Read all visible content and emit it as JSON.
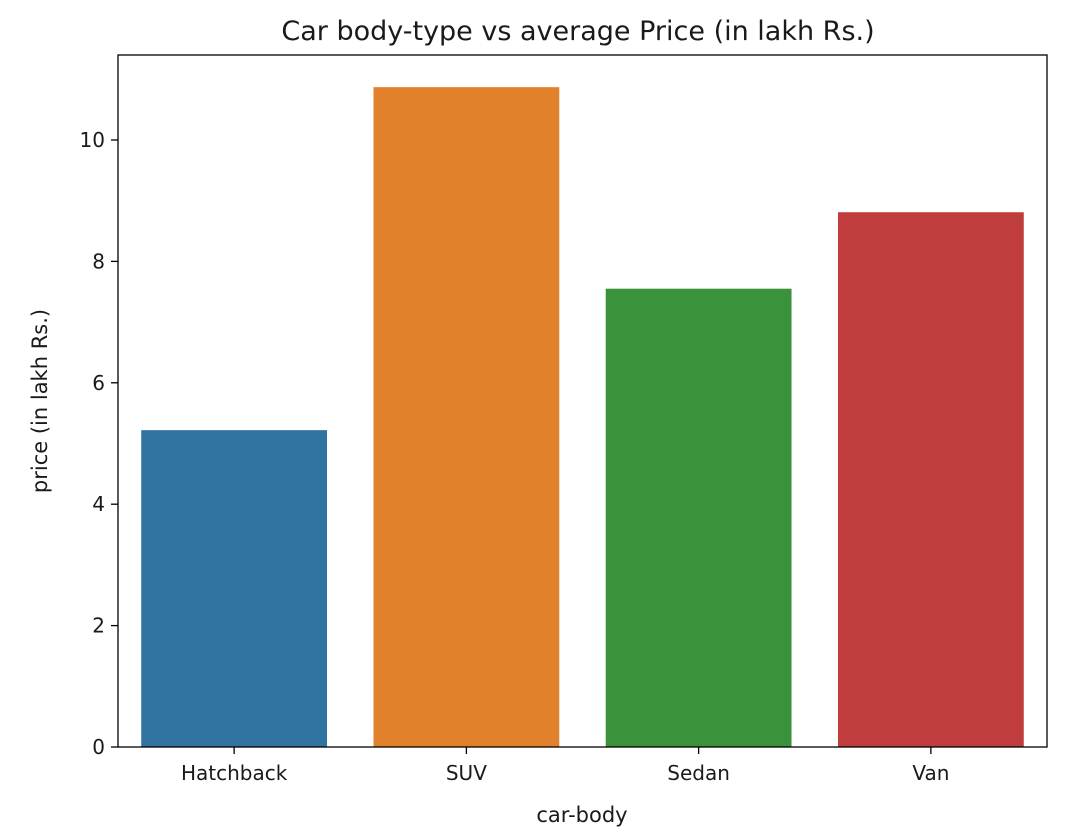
{
  "chart_data": {
    "type": "bar",
    "title": "Car body-type vs average Price (in lakh Rs.)",
    "xlabel": "car-body",
    "ylabel": "price (in lakh Rs.)",
    "categories": [
      "Hatchback",
      "SUV",
      "Sedan",
      "Van"
    ],
    "values": [
      5.22,
      10.87,
      7.55,
      8.81
    ],
    "colors": [
      "#3274a1",
      "#e1812c",
      "#3a923a",
      "#c03d3e"
    ],
    "ylim": [
      0,
      11.4
    ],
    "yticks": [
      0,
      2,
      4,
      6,
      8,
      10
    ],
    "grid": false,
    "legend": false
  }
}
